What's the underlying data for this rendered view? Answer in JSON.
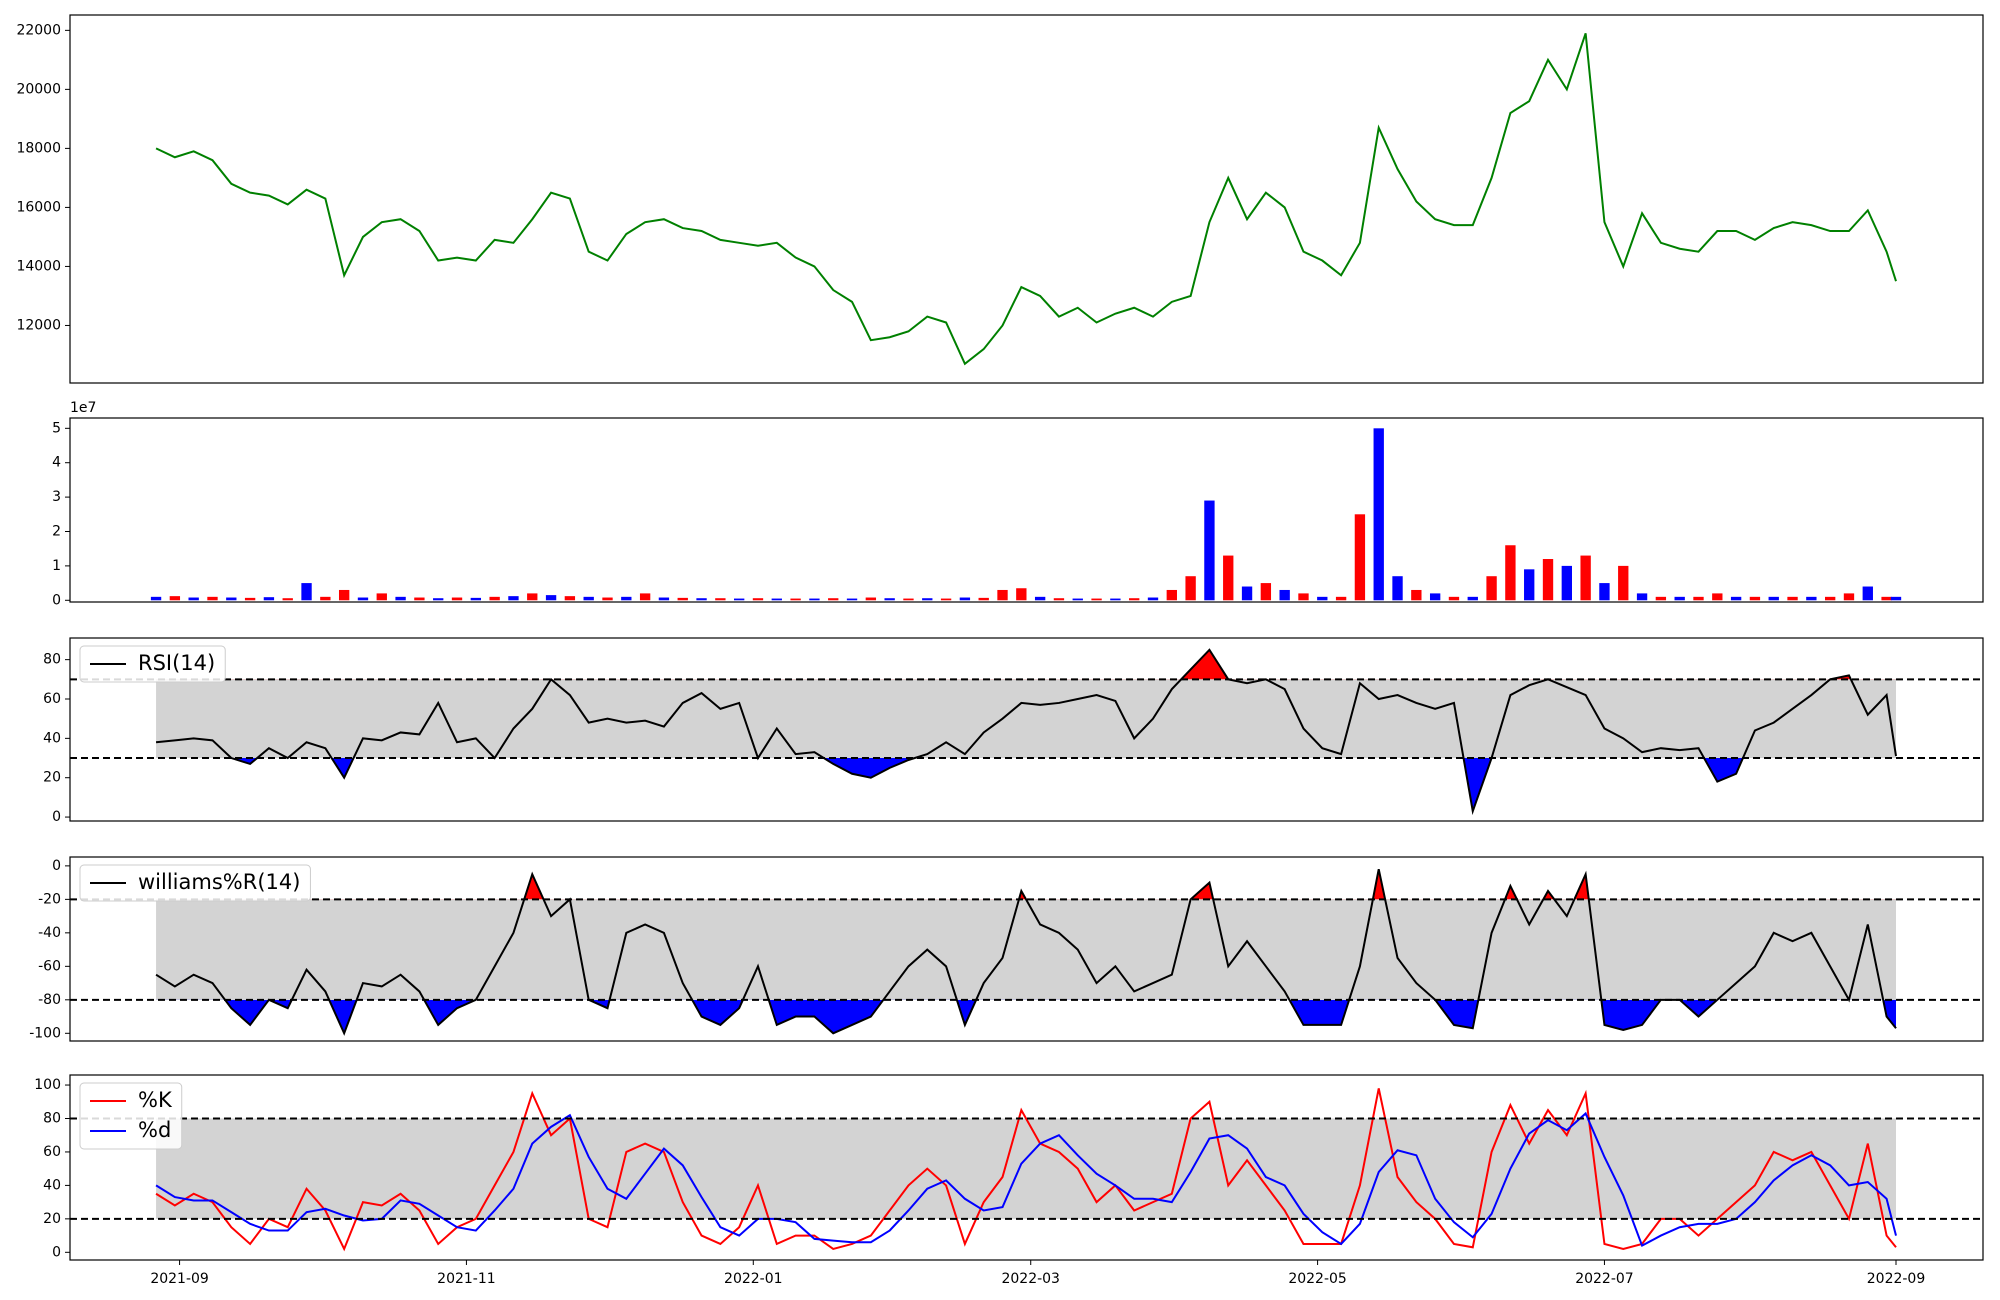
{
  "chart_data": [
    {
      "type": "line",
      "x": [
        -5,
        -1,
        3,
        7,
        11,
        15,
        19,
        23,
        27,
        31,
        35,
        39,
        43,
        47,
        51,
        55,
        59,
        63,
        67,
        71,
        75,
        79,
        83,
        87,
        91,
        95,
        99,
        103,
        107,
        111,
        115,
        119,
        123,
        127,
        131,
        135,
        139,
        143,
        147,
        151,
        155,
        159,
        163,
        167,
        171,
        175,
        179,
        183,
        187,
        191,
        195,
        199,
        203,
        207,
        211,
        215,
        219,
        223,
        227,
        231,
        235,
        239,
        243,
        247,
        251,
        255,
        259,
        263,
        267,
        271,
        275,
        279,
        283,
        287,
        291,
        295,
        299,
        303,
        307,
        311,
        315,
        319,
        323,
        327,
        331,
        335,
        339,
        343,
        347,
        351,
        355,
        359,
        363,
        365
      ],
      "series": [
        {
          "color": "#008000",
          "values": [
            18000,
            17700,
            17900,
            17600,
            16800,
            16500,
            16400,
            16100,
            16600,
            16300,
            13700,
            15000,
            15500,
            15600,
            15200,
            14200,
            14300,
            14200,
            14900,
            14800,
            15600,
            16500,
            16300,
            14500,
            14200,
            15100,
            15500,
            15600,
            15300,
            15200,
            14900,
            14800,
            14700,
            14800,
            14300,
            14000,
            13200,
            12800,
            11500,
            11600,
            11800,
            12300,
            12100,
            10700,
            11200,
            12000,
            13300,
            13000,
            12300,
            12600,
            12100,
            12400,
            12600,
            12300,
            12800,
            13000,
            15500,
            17000,
            15600,
            16500,
            16000,
            14500,
            14200,
            13700,
            14800,
            18700,
            17300,
            16200,
            15600,
            15400,
            15400,
            17000,
            19200,
            19600,
            21000,
            20000,
            21900,
            15500,
            14000,
            15800,
            14800,
            14600,
            14500,
            15200,
            15200,
            14900,
            15300,
            15500,
            15400,
            15200,
            15200,
            15900,
            14500,
            13500
          ]
        }
      ],
      "xlim": [
        -23.3,
        383.5
      ],
      "ylim": [
        10050,
        22520
      ],
      "yticks": [
        12000,
        14000,
        16000,
        18000,
        20000,
        22000
      ]
    },
    {
      "type": "bar",
      "offset_label": "1e7",
      "x": [
        -5,
        -1,
        3,
        7,
        11,
        15,
        19,
        23,
        27,
        31,
        35,
        39,
        43,
        47,
        51,
        55,
        59,
        63,
        67,
        71,
        75,
        79,
        83,
        87,
        91,
        95,
        99,
        103,
        107,
        111,
        115,
        119,
        123,
        127,
        131,
        135,
        139,
        143,
        147,
        151,
        155,
        159,
        163,
        167,
        171,
        175,
        179,
        183,
        187,
        191,
        195,
        199,
        203,
        207,
        211,
        215,
        219,
        223,
        227,
        231,
        235,
        239,
        243,
        247,
        251,
        255,
        259,
        263,
        267,
        271,
        275,
        279,
        283,
        287,
        291,
        295,
        299,
        303,
        307,
        311,
        315,
        319,
        323,
        327,
        331,
        335,
        339,
        343,
        347,
        351,
        355,
        359,
        363,
        365
      ],
      "values": [
        0.1,
        0.12,
        0.08,
        0.1,
        0.08,
        0.07,
        0.09,
        0.06,
        0.5,
        0.1,
        0.3,
        0.08,
        0.2,
        0.1,
        0.08,
        0.06,
        0.08,
        0.07,
        0.1,
        0.12,
        0.2,
        0.15,
        0.12,
        0.1,
        0.08,
        0.1,
        0.2,
        0.08,
        0.07,
        0.06,
        0.06,
        0.05,
        0.06,
        0.05,
        0.05,
        0.05,
        0.06,
        0.05,
        0.08,
        0.06,
        0.05,
        0.06,
        0.05,
        0.08,
        0.07,
        0.3,
        0.35,
        0.1,
        0.06,
        0.05,
        0.05,
        0.05,
        0.06,
        0.08,
        0.3,
        0.7,
        2.9,
        1.3,
        0.4,
        0.5,
        0.3,
        0.2,
        0.1,
        0.1,
        2.5,
        5.0,
        0.7,
        0.3,
        0.2,
        0.1,
        0.1,
        0.7,
        1.6,
        0.9,
        1.2,
        1.0,
        1.3,
        0.5,
        1.0,
        0.2,
        0.1,
        0.1,
        0.1,
        0.2,
        0.1,
        0.1,
        0.1,
        0.1,
        0.1,
        0.1,
        0.2,
        0.4,
        0.1,
        0.1
      ],
      "colors": [
        "blue",
        "red",
        "blue",
        "red",
        "blue",
        "red",
        "blue",
        "red",
        "blue",
        "red",
        "red",
        "blue",
        "red",
        "blue",
        "red",
        "blue",
        "red",
        "blue",
        "red",
        "blue",
        "red",
        "blue",
        "red",
        "blue",
        "red",
        "blue",
        "red",
        "blue",
        "red",
        "blue",
        "red",
        "blue",
        "red",
        "blue",
        "red",
        "blue",
        "red",
        "blue",
        "red",
        "blue",
        "red",
        "blue",
        "red",
        "blue",
        "red",
        "red",
        "red",
        "blue",
        "red",
        "blue",
        "red",
        "blue",
        "red",
        "blue",
        "red",
        "red",
        "blue",
        "red",
        "blue",
        "red",
        "blue",
        "red",
        "blue",
        "red",
        "red",
        "blue",
        "blue",
        "red",
        "blue",
        "red",
        "blue",
        "red",
        "red",
        "blue",
        "red",
        "blue",
        "red",
        "blue",
        "red",
        "blue",
        "red",
        "blue",
        "red",
        "red",
        "blue",
        "red",
        "blue",
        "red",
        "blue",
        "red",
        "red",
        "blue",
        "red",
        "blue"
      ],
      "xlim": [
        -23.3,
        383.5
      ],
      "ylim": [
        -0.05,
        5.3
      ],
      "yticks": [
        0,
        1,
        2,
        3,
        4,
        5
      ]
    },
    {
      "type": "line",
      "legend": "upper left",
      "bands": [
        30,
        70
      ],
      "band_color": "#d3d3d3",
      "fill_above": "#ff0000",
      "fill_below": "#0000ff",
      "x": [
        -5,
        -1,
        3,
        7,
        11,
        15,
        19,
        23,
        27,
        31,
        35,
        39,
        43,
        47,
        51,
        55,
        59,
        63,
        67,
        71,
        75,
        79,
        83,
        87,
        91,
        95,
        99,
        103,
        107,
        111,
        115,
        119,
        123,
        127,
        131,
        135,
        139,
        143,
        147,
        151,
        155,
        159,
        163,
        167,
        171,
        175,
        179,
        183,
        187,
        191,
        195,
        199,
        203,
        207,
        211,
        215,
        219,
        223,
        227,
        231,
        235,
        239,
        243,
        247,
        251,
        255,
        259,
        263,
        267,
        271,
        275,
        279,
        283,
        287,
        291,
        295,
        299,
        303,
        307,
        311,
        315,
        319,
        323,
        327,
        331,
        335,
        339,
        343,
        347,
        351,
        355,
        359,
        363,
        365
      ],
      "series": [
        {
          "name": "RSI(14)",
          "color": "#000000",
          "values": [
            38,
            39,
            40,
            39,
            30,
            27,
            35,
            30,
            38,
            35,
            20,
            40,
            39,
            43,
            42,
            58,
            38,
            40,
            30,
            45,
            55,
            70,
            62,
            48,
            50,
            48,
            49,
            46,
            58,
            63,
            55,
            58,
            30,
            45,
            32,
            33,
            27,
            22,
            20,
            25,
            29,
            32,
            38,
            32,
            43,
            50,
            58,
            57,
            58,
            60,
            62,
            59,
            40,
            50,
            65,
            75,
            85,
            70,
            68,
            70,
            65,
            45,
            35,
            32,
            68,
            60,
            62,
            58,
            55,
            58,
            3,
            30,
            62,
            67,
            70,
            66,
            62,
            45,
            40,
            33,
            35,
            34,
            35,
            18,
            22,
            44,
            48,
            55,
            62,
            70,
            72,
            52,
            62,
            31
          ]
        }
      ],
      "xlim": [
        -23.3,
        383.5
      ],
      "ylim": [
        -2,
        91
      ],
      "yticks": [
        0,
        20,
        40,
        60,
        80
      ]
    },
    {
      "type": "line",
      "legend": "upper left",
      "bands": [
        -80,
        -20
      ],
      "band_color": "#d3d3d3",
      "fill_above": "#ff0000",
      "fill_below": "#0000ff",
      "x": [
        -5,
        -1,
        3,
        7,
        11,
        15,
        19,
        23,
        27,
        31,
        35,
        39,
        43,
        47,
        51,
        55,
        59,
        63,
        67,
        71,
        75,
        79,
        83,
        87,
        91,
        95,
        99,
        103,
        107,
        111,
        115,
        119,
        123,
        127,
        131,
        135,
        139,
        143,
        147,
        151,
        155,
        159,
        163,
        167,
        171,
        175,
        179,
        183,
        187,
        191,
        195,
        199,
        203,
        207,
        211,
        215,
        219,
        223,
        227,
        231,
        235,
        239,
        243,
        247,
        251,
        255,
        259,
        263,
        267,
        271,
        275,
        279,
        283,
        287,
        291,
        295,
        299,
        303,
        307,
        311,
        315,
        319,
        323,
        327,
        331,
        335,
        339,
        343,
        347,
        351,
        355,
        359,
        363,
        365
      ],
      "series": [
        {
          "name": "williams%R(14)",
          "color": "#000000",
          "values": [
            -65,
            -72,
            -65,
            -70,
            -85,
            -95,
            -80,
            -85,
            -62,
            -75,
            -100,
            -70,
            -72,
            -65,
            -75,
            -95,
            -85,
            -80,
            -60,
            -40,
            -5,
            -30,
            -20,
            -80,
            -85,
            -40,
            -35,
            -40,
            -70,
            -90,
            -95,
            -85,
            -60,
            -95,
            -90,
            -90,
            -100,
            -95,
            -90,
            -75,
            -60,
            -50,
            -60,
            -95,
            -70,
            -55,
            -15,
            -35,
            -40,
            -50,
            -70,
            -60,
            -75,
            -70,
            -65,
            -20,
            -10,
            -60,
            -45,
            -60,
            -75,
            -95,
            -95,
            -95,
            -60,
            -2,
            -55,
            -70,
            -80,
            -95,
            -97,
            -40,
            -12,
            -35,
            -15,
            -30,
            -5,
            -95,
            -98,
            -95,
            -80,
            -80,
            -90,
            -80,
            -70,
            -60,
            -40,
            -45,
            -40,
            -60,
            -80,
            -35,
            -90,
            -97
          ]
        }
      ],
      "xlim": [
        -23.3,
        383.5
      ],
      "ylim": [
        -104.6,
        5.3
      ],
      "yticks": [
        -100,
        -80,
        -60,
        -40,
        -20,
        0
      ]
    },
    {
      "type": "line",
      "legend": "upper left",
      "bands": [
        20,
        80
      ],
      "band_color": "#d3d3d3",
      "x": [
        -5,
        -1,
        3,
        7,
        11,
        15,
        19,
        23,
        27,
        31,
        35,
        39,
        43,
        47,
        51,
        55,
        59,
        63,
        67,
        71,
        75,
        79,
        83,
        87,
        91,
        95,
        99,
        103,
        107,
        111,
        115,
        119,
        123,
        127,
        131,
        135,
        139,
        143,
        147,
        151,
        155,
        159,
        163,
        167,
        171,
        175,
        179,
        183,
        187,
        191,
        195,
        199,
        203,
        207,
        211,
        215,
        219,
        223,
        227,
        231,
        235,
        239,
        243,
        247,
        251,
        255,
        259,
        263,
        267,
        271,
        275,
        279,
        283,
        287,
        291,
        295,
        299,
        303,
        307,
        311,
        315,
        319,
        323,
        327,
        331,
        335,
        339,
        343,
        347,
        351,
        355,
        359,
        363,
        365
      ],
      "series": [
        {
          "name": "%K",
          "color": "#ff0000",
          "values": [
            35,
            28,
            35,
            30,
            15,
            5,
            20,
            15,
            38,
            25,
            2,
            30,
            28,
            35,
            25,
            5,
            15,
            20,
            40,
            60,
            95,
            70,
            80,
            20,
            15,
            60,
            65,
            60,
            30,
            10,
            5,
            15,
            40,
            5,
            10,
            10,
            2,
            5,
            10,
            25,
            40,
            50,
            40,
            5,
            30,
            45,
            85,
            65,
            60,
            50,
            30,
            40,
            25,
            30,
            35,
            80,
            90,
            40,
            55,
            40,
            25,
            5,
            5,
            5,
            40,
            98,
            45,
            30,
            20,
            5,
            3,
            60,
            88,
            65,
            85,
            70,
            95,
            5,
            2,
            5,
            20,
            20,
            10,
            20,
            30,
            40,
            60,
            55,
            60,
            40,
            20,
            65,
            10,
            3
          ]
        },
        {
          "name": "%d",
          "color": "#0000ff",
          "values": [
            40,
            33,
            31,
            31,
            24,
            17,
            13,
            13,
            24,
            26,
            22,
            19,
            20,
            31,
            29,
            22,
            15,
            13,
            25,
            38,
            65,
            75,
            82,
            57,
            38,
            32,
            47,
            62,
            52,
            33,
            15,
            10,
            20,
            20,
            18,
            8,
            7,
            6,
            6,
            13,
            25,
            38,
            43,
            32,
            25,
            27,
            53,
            65,
            70,
            58,
            47,
            40,
            32,
            32,
            30,
            48,
            68,
            70,
            62,
            45,
            40,
            23,
            12,
            5,
            17,
            48,
            61,
            58,
            32,
            18,
            9,
            23,
            50,
            71,
            79,
            73,
            83,
            57,
            34,
            4,
            10,
            15,
            17,
            17,
            20,
            30,
            43,
            52,
            58,
            52,
            40,
            42,
            32,
            10
          ]
        }
      ],
      "xlim": [
        -23.3,
        383.5
      ],
      "ylim": [
        -4.6,
        106
      ],
      "yticks": [
        0,
        20,
        40,
        60,
        80,
        100
      ],
      "xticks": [
        {
          "value": 0,
          "label": "2021-09"
        },
        {
          "value": 61,
          "label": "2021-11"
        },
        {
          "value": 122,
          "label": "2022-01"
        },
        {
          "value": 181,
          "label": "2022-03"
        },
        {
          "value": 242,
          "label": "2022-05"
        },
        {
          "value": 303,
          "label": "2022-07"
        },
        {
          "value": 365,
          "label": "2022-09"
        }
      ]
    }
  ]
}
